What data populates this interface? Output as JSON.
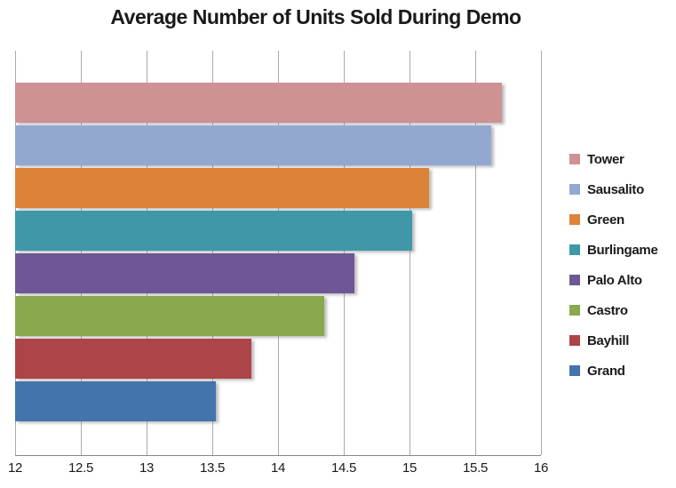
{
  "title": "Average Number of Units Sold During Demo",
  "colors": {
    "background": "#ffffff",
    "gridline": "#ababab",
    "axis_line": "#898989",
    "text": "#1a1a1a"
  },
  "chart_data": {
    "type": "bar",
    "orientation": "horizontal",
    "title": "Average Number of Units Sold During Demo",
    "xlabel": "",
    "ylabel": "",
    "xlim": [
      12,
      16
    ],
    "xticks": [
      12,
      12.5,
      13,
      13.5,
      14,
      14.5,
      15,
      15.5,
      16
    ],
    "xtick_labels": [
      "12",
      "12.5",
      "13",
      "13.5",
      "14",
      "14.5",
      "15",
      "15.5",
      "16"
    ],
    "grid": true,
    "legend_position": "right",
    "categories": [
      "Tower",
      "Sausalito",
      "Green",
      "Burlingame",
      "Palo Alto",
      "Castro",
      "Bayhill",
      "Grand"
    ],
    "values": [
      15.7,
      15.62,
      15.15,
      15.02,
      14.58,
      14.35,
      13.8,
      13.53
    ],
    "bar_colors": [
      "#CE9194",
      "#93A8D0",
      "#DD8239",
      "#3F98A8",
      "#6E5794",
      "#8AA84E",
      "#AD4448",
      "#4374AC"
    ]
  }
}
